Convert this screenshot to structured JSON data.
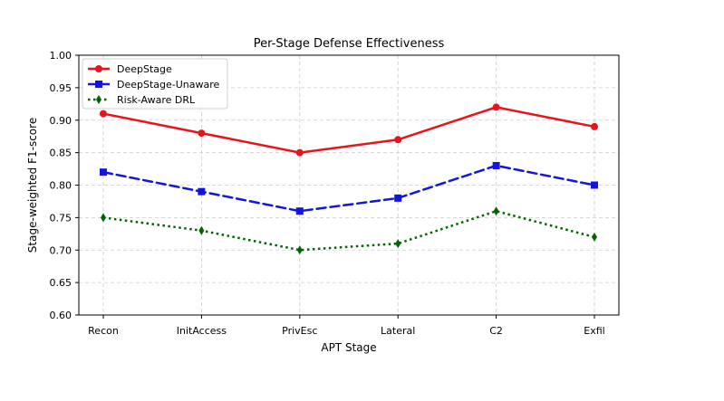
{
  "chart_data": {
    "type": "line",
    "title": "Per-Stage Defense Effectiveness",
    "xlabel": "APT Stage",
    "ylabel": "Stage-weighted F1-score",
    "categories": [
      "Recon",
      "InitAccess",
      "PrivEsc",
      "Lateral",
      "C2",
      "Exfil"
    ],
    "ylim": [
      0.6,
      1.0
    ],
    "yticks": [
      0.6,
      0.65,
      0.7,
      0.75,
      0.8,
      0.85,
      0.9,
      0.95,
      1.0
    ],
    "ytick_labels": [
      "0.60",
      "0.65",
      "0.70",
      "0.75",
      "0.80",
      "0.85",
      "0.90",
      "0.95",
      "1.00"
    ],
    "grid": true,
    "legend_position": "top-left",
    "series": [
      {
        "name": "DeepStage",
        "color": "#e8141c",
        "style": "solid",
        "marker": "circle",
        "values": [
          0.91,
          0.88,
          0.85,
          0.87,
          0.92,
          0.89
        ]
      },
      {
        "name": "DeepStage-Unaware",
        "color": "#1414e0",
        "style": "dashed",
        "marker": "square",
        "values": [
          0.82,
          0.79,
          0.76,
          0.78,
          0.83,
          0.8
        ]
      },
      {
        "name": "Risk-Aware DRL",
        "color": "#006400",
        "style": "dotted",
        "marker": "diamond",
        "values": [
          0.75,
          0.73,
          0.7,
          0.71,
          0.76,
          0.72
        ]
      }
    ]
  }
}
